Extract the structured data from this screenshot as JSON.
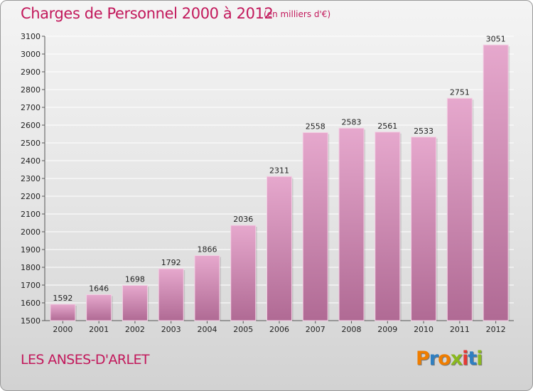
{
  "header": {
    "title": "Charges de Personnel 2000 à 2012",
    "subtitle": "(en milliers d'€)"
  },
  "footer": {
    "location": "LES ANSES-D'ARLET",
    "brand": "Proxiti"
  },
  "colors": {
    "title": "#c2185b",
    "bar_top": "#e6a8cd",
    "bar_bottom": "#b06a94",
    "brand_letters": [
      "#ef7d00",
      "#2f7fc1",
      "#ef7d00",
      "#8ab81f",
      "#e53935",
      "#2f7fc1",
      "#8ab81f"
    ]
  },
  "chart_data": {
    "type": "bar",
    "title": "Charges de Personnel 2000 à 2012",
    "xlabel": "",
    "ylabel": "",
    "categories": [
      "2000",
      "2001",
      "2002",
      "2003",
      "2004",
      "2005",
      "2006",
      "2007",
      "2008",
      "2009",
      "2010",
      "2011",
      "2012"
    ],
    "values": [
      1592,
      1646,
      1698,
      1792,
      1866,
      2036,
      2311,
      2558,
      2583,
      2561,
      2533,
      2751,
      3051
    ],
    "ylim": [
      1500,
      3100
    ],
    "yticks": [
      1500,
      1600,
      1700,
      1800,
      1900,
      2000,
      2100,
      2200,
      2300,
      2400,
      2500,
      2600,
      2700,
      2800,
      2900,
      3000,
      3100
    ],
    "grid": true
  }
}
